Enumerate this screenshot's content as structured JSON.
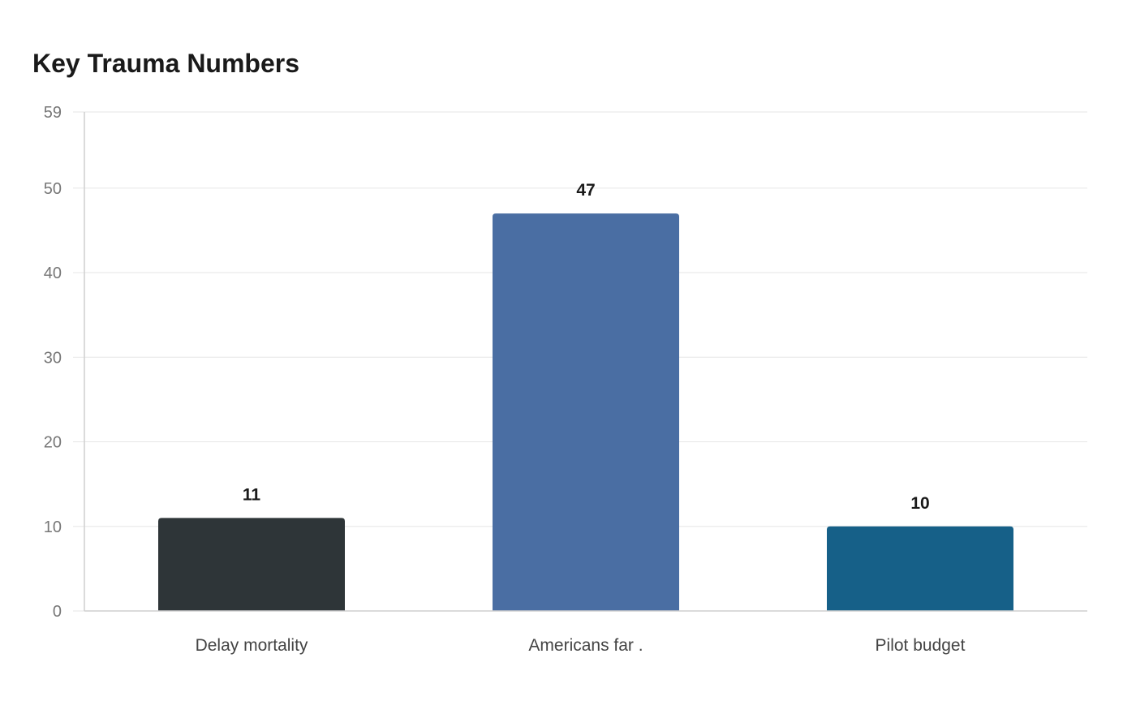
{
  "chart_data": {
    "type": "bar",
    "title": "Key Trauma Numbers",
    "categories": [
      "Delay mortality",
      "Americans far .",
      "Pilot budget"
    ],
    "values": [
      11,
      47,
      10
    ],
    "colors": [
      "#2e3538",
      "#4a6ea3",
      "#166088"
    ],
    "xlabel": "",
    "ylabel": "",
    "ylim": [
      0,
      59
    ],
    "yticks": [
      0,
      10,
      20,
      30,
      40,
      50,
      59
    ],
    "grid": true,
    "legend": "none"
  }
}
